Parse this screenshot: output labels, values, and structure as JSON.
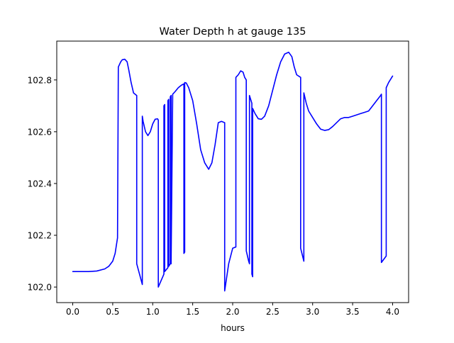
{
  "chart_data": {
    "type": "line",
    "title": "Water Depth h at gauge 135",
    "xlabel": "hours",
    "ylabel": "",
    "xlim": [
      -0.2,
      4.2
    ],
    "ylim": [
      101.94,
      102.95
    ],
    "xticks": [
      0.0,
      0.5,
      1.0,
      1.5,
      2.0,
      2.5,
      3.0,
      3.5,
      4.0
    ],
    "xtick_labels": [
      "0.0",
      "0.5",
      "1.0",
      "1.5",
      "2.0",
      "2.5",
      "3.0",
      "3.5",
      "4.0"
    ],
    "yticks": [
      102.0,
      102.2,
      102.4,
      102.6,
      102.8
    ],
    "ytick_labels": [
      "102.0",
      "102.2",
      "102.4",
      "102.6",
      "102.8"
    ],
    "grid": false,
    "series": [
      {
        "color": "#0000ff",
        "x": [
          0.0,
          0.2,
          0.3,
          0.4,
          0.45,
          0.5,
          0.53,
          0.56,
          0.57,
          0.6,
          0.62,
          0.65,
          0.68,
          0.7,
          0.73,
          0.76,
          0.8,
          0.8,
          0.87,
          0.87,
          0.88,
          0.91,
          0.94,
          0.97,
          1.0,
          1.03,
          1.06,
          1.07,
          1.07,
          1.14,
          1.14,
          1.15,
          1.15,
          1.19,
          1.19,
          1.2,
          1.2,
          1.22,
          1.22,
          1.23,
          1.23,
          1.25,
          1.28,
          1.32,
          1.36,
          1.39,
          1.39,
          1.4,
          1.4,
          1.42,
          1.45,
          1.5,
          1.55,
          1.6,
          1.65,
          1.7,
          1.74,
          1.78,
          1.82,
          1.86,
          1.9,
          1.9,
          1.95,
          2.0,
          2.04,
          2.04,
          2.07,
          2.1,
          2.13,
          2.15,
          2.17,
          2.17,
          2.2,
          2.21,
          2.21,
          2.24,
          2.24,
          2.25,
          2.25,
          2.28,
          2.32,
          2.36,
          2.4,
          2.45,
          2.5,
          2.55,
          2.6,
          2.65,
          2.7,
          2.74,
          2.77,
          2.8,
          2.85,
          2.85,
          2.89,
          2.89,
          2.92,
          2.95,
          3.0,
          3.05,
          3.1,
          3.15,
          3.2,
          3.25,
          3.3,
          3.35,
          3.4,
          3.45,
          3.5,
          3.55,
          3.6,
          3.65,
          3.7,
          3.75,
          3.8,
          3.85,
          3.86,
          3.86,
          3.92,
          3.92,
          3.95,
          4.0
        ],
        "y": [
          102.06,
          102.06,
          102.062,
          102.07,
          102.08,
          102.1,
          102.13,
          102.19,
          102.85,
          102.87,
          102.878,
          102.88,
          102.87,
          102.84,
          102.79,
          102.75,
          102.74,
          102.09,
          102.01,
          102.66,
          102.64,
          102.6,
          102.585,
          102.6,
          102.63,
          102.648,
          102.65,
          102.645,
          102.0,
          102.05,
          102.7,
          102.705,
          102.06,
          102.075,
          102.72,
          102.725,
          102.08,
          102.09,
          102.735,
          102.74,
          102.09,
          102.745,
          102.755,
          102.77,
          102.78,
          102.785,
          102.13,
          102.135,
          102.79,
          102.788,
          102.77,
          102.72,
          102.63,
          102.53,
          102.48,
          102.455,
          102.48,
          102.55,
          102.635,
          102.64,
          102.635,
          101.985,
          102.09,
          102.15,
          102.155,
          102.81,
          102.82,
          102.835,
          102.83,
          102.81,
          102.8,
          102.14,
          102.1,
          102.09,
          102.74,
          102.71,
          102.05,
          102.04,
          102.69,
          102.67,
          102.65,
          102.648,
          102.66,
          102.7,
          102.76,
          102.82,
          102.87,
          102.9,
          102.907,
          102.89,
          102.85,
          102.82,
          102.81,
          102.15,
          102.1,
          102.75,
          102.71,
          102.68,
          102.655,
          102.63,
          102.61,
          102.605,
          102.608,
          102.62,
          102.635,
          102.65,
          102.655,
          102.655,
          102.66,
          102.665,
          102.67,
          102.675,
          102.68,
          102.7,
          102.72,
          102.74,
          102.745,
          102.095,
          102.12,
          102.77,
          102.79,
          102.815
        ]
      }
    ]
  }
}
